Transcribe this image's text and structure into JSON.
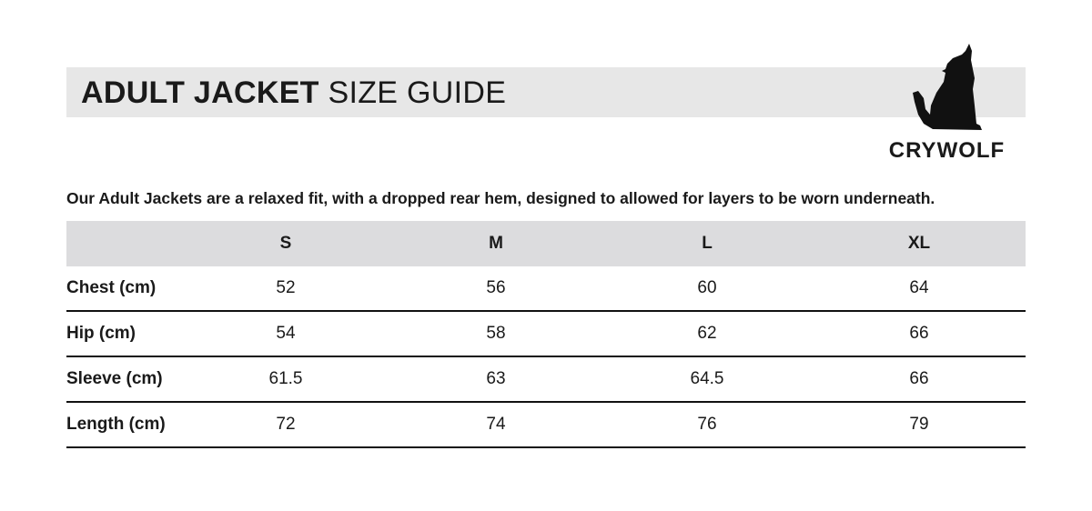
{
  "title": {
    "bold": "ADULT JACKET",
    "light": "SIZE GUIDE"
  },
  "brand": {
    "name": "CRYWOLF",
    "logo_icon": "howling-wolf-icon"
  },
  "intro": "Our Adult Jackets are a relaxed fit,  with a dropped rear hem, designed to allowed for layers to be worn underneath.",
  "table": {
    "columns": [
      "S",
      "M",
      "L",
      "XL"
    ],
    "rows": [
      {
        "label": "Chest (cm)",
        "values": [
          "52",
          "56",
          "60",
          "64"
        ]
      },
      {
        "label": "Hip (cm)",
        "values": [
          "54",
          "58",
          "62",
          "66"
        ]
      },
      {
        "label": "Sleeve (cm)",
        "values": [
          "61.5",
          "63",
          "64.5",
          "66"
        ]
      },
      {
        "label": "Length (cm)",
        "values": [
          "72",
          "74",
          "76",
          "79"
        ]
      }
    ]
  },
  "colors": {
    "band": "#e7e7e7",
    "header": "#dcdcde",
    "text": "#1a1a1a"
  }
}
